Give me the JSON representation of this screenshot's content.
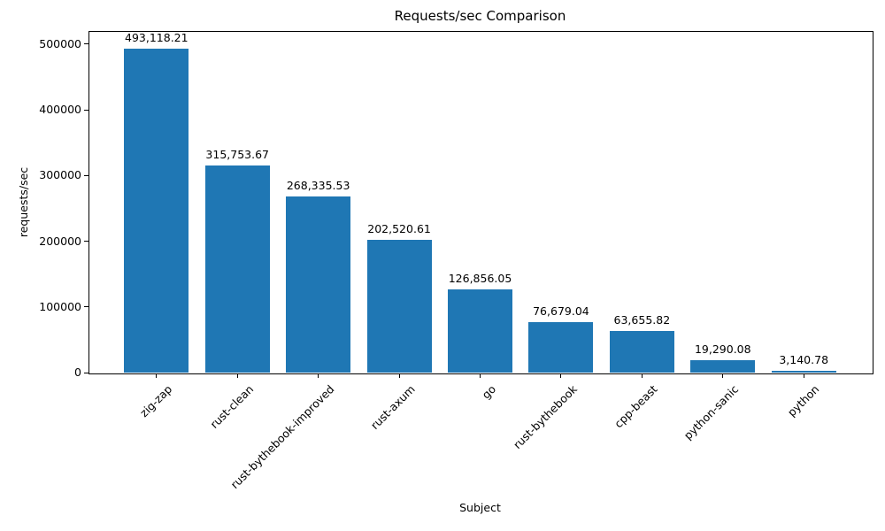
{
  "chart_data": {
    "type": "bar",
    "title": "Requests/sec Comparison",
    "xlabel": "Subject",
    "ylabel": "requests/sec",
    "categories": [
      "zig-zap",
      "rust-clean",
      "rust-bythebook-improved",
      "rust-axum",
      "go",
      "rust-bythebook",
      "cpp-beast",
      "python-sanic",
      "python"
    ],
    "values": [
      493118.21,
      315753.67,
      268335.53,
      202520.61,
      126856.05,
      76679.04,
      63655.82,
      19290.08,
      3140.78
    ],
    "bar_labels": [
      "493,118.21",
      "315,753.67",
      "268,335.53",
      "202,520.61",
      "126,856.05",
      "76,679.04",
      "63,655.82",
      "19,290.08",
      "3,140.78"
    ],
    "yticks": [
      0,
      100000,
      200000,
      300000,
      400000,
      500000
    ],
    "ytick_labels": [
      "0",
      "100000",
      "200000",
      "300000",
      "400000",
      "500000"
    ],
    "ylim": [
      0,
      520000
    ],
    "bar_color": "#1f77b4",
    "bar_width_fraction": 0.8,
    "x_margin_fraction": 0.05,
    "grid": false,
    "legend": null
  }
}
